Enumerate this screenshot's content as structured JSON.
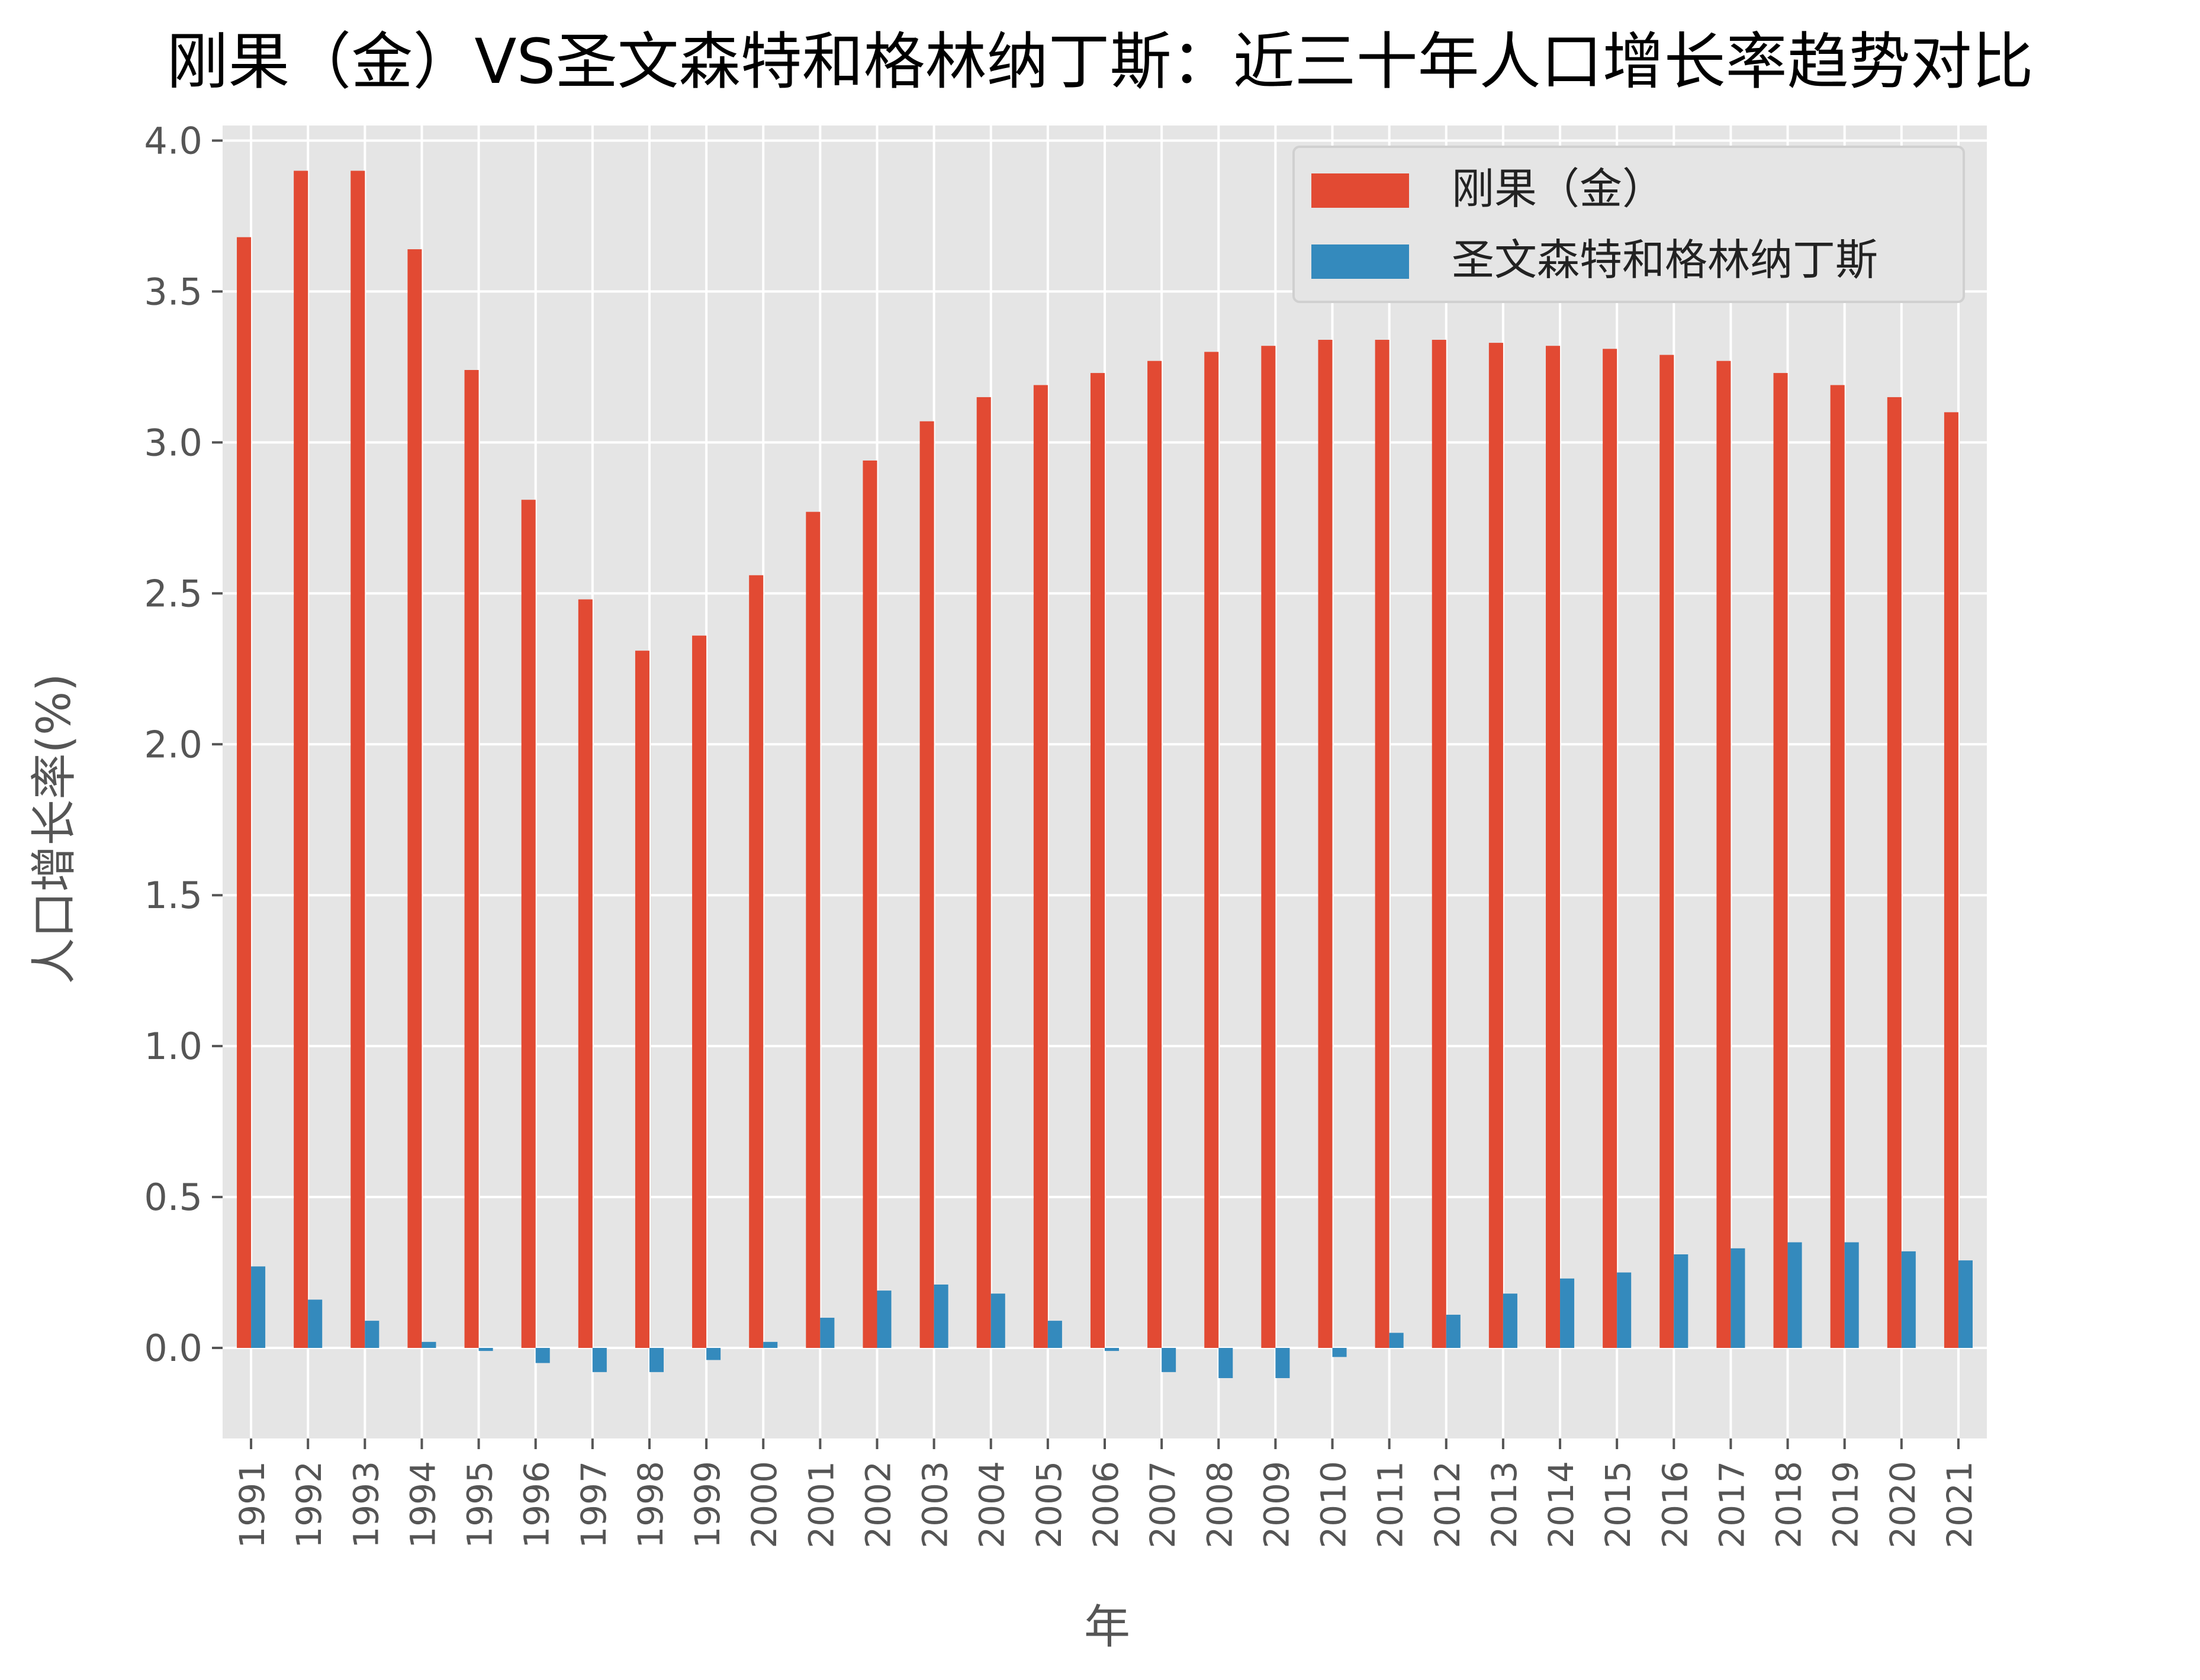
{
  "chart_data": {
    "type": "bar",
    "title": "刚果（金）VS圣文森特和格林纳丁斯：近三十年人口增长率趋势对比",
    "xlabel": "年",
    "ylabel": "人口增长率(%)",
    "categories": [
      "1991",
      "1992",
      "1993",
      "1994",
      "1995",
      "1996",
      "1997",
      "1998",
      "1999",
      "2000",
      "2001",
      "2002",
      "2003",
      "2004",
      "2005",
      "2006",
      "2007",
      "2008",
      "2009",
      "2010",
      "2011",
      "2012",
      "2013",
      "2014",
      "2015",
      "2016",
      "2017",
      "2018",
      "2019",
      "2020",
      "2021"
    ],
    "series": [
      {
        "name": "刚果（金）",
        "color": "#E24A33",
        "values": [
          3.68,
          3.9,
          3.9,
          3.64,
          3.24,
          2.81,
          2.48,
          2.31,
          2.36,
          2.56,
          2.77,
          2.94,
          3.07,
          3.15,
          3.19,
          3.23,
          3.27,
          3.3,
          3.32,
          3.34,
          3.34,
          3.34,
          3.33,
          3.32,
          3.31,
          3.29,
          3.27,
          3.23,
          3.19,
          3.15,
          3.1
        ]
      },
      {
        "name": "圣文森特和格林纳丁斯",
        "color": "#348ABD",
        "values": [
          0.27,
          0.16,
          0.09,
          0.02,
          -0.01,
          -0.05,
          -0.08,
          -0.08,
          -0.04,
          0.02,
          0.1,
          0.19,
          0.21,
          0.18,
          0.09,
          -0.01,
          -0.08,
          -0.1,
          -0.1,
          -0.03,
          0.05,
          0.11,
          0.18,
          0.23,
          0.25,
          0.31,
          0.33,
          0.35,
          0.35,
          0.32,
          0.29
        ]
      }
    ],
    "ylim": [
      -0.3,
      4.05
    ],
    "yticks": [
      0.0,
      0.5,
      1.0,
      1.5,
      2.0,
      2.5,
      3.0,
      3.5,
      4.0
    ],
    "ytick_labels": [
      "0.0",
      "0.5",
      "1.0",
      "1.5",
      "2.0",
      "2.5",
      "3.0",
      "3.5",
      "4.0"
    ],
    "grid": true,
    "legend_position": "top-right",
    "background_color": "#E5E5E5",
    "grid_color": "#FFFFFF",
    "text_color": "#555555"
  }
}
